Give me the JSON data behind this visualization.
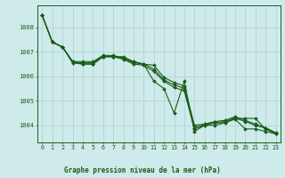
{
  "background_color": "#ceeaea",
  "grid_color": "#aed0d0",
  "line_color": "#1a5c1a",
  "marker_color": "#1a5c1a",
  "title": "Graphe pression niveau de la mer (hPa)",
  "title_color": "#1a5c1a",
  "ylim": [
    1003.3,
    1008.9
  ],
  "yticks": [
    1004,
    1005,
    1006,
    1007,
    1008
  ],
  "xticks": [
    0,
    1,
    2,
    3,
    4,
    5,
    6,
    7,
    8,
    9,
    10,
    11,
    12,
    13,
    14,
    15,
    16,
    17,
    18,
    19,
    20,
    21,
    22,
    23
  ],
  "s1": [
    1008.5,
    1007.4,
    1007.2,
    1006.6,
    1006.5,
    1006.5,
    1006.8,
    1006.8,
    1006.8,
    1006.6,
    1006.5,
    1005.8,
    1005.5,
    1004.5,
    1005.8,
    1003.75,
    1004.0,
    1004.0,
    1004.1,
    1004.25,
    1003.85,
    1003.85,
    1003.75,
    1003.65
  ],
  "s2": [
    1008.5,
    1007.4,
    1007.2,
    1006.6,
    1006.6,
    1006.6,
    1006.85,
    1006.85,
    1006.75,
    1006.6,
    1006.5,
    1006.45,
    1005.95,
    1005.75,
    1005.6,
    1004.0,
    1004.05,
    1004.15,
    1004.2,
    1004.35,
    1004.2,
    1004.05,
    1003.9,
    1003.7
  ],
  "s3": [
    1008.5,
    1007.4,
    1007.2,
    1006.6,
    1006.55,
    1006.55,
    1006.82,
    1006.82,
    1006.72,
    1006.55,
    1006.5,
    1006.3,
    1005.85,
    1005.65,
    1005.5,
    1003.9,
    1004.03,
    1004.12,
    1004.15,
    1004.3,
    1004.15,
    1004.0,
    1003.88,
    1003.68
  ],
  "s4": [
    1008.5,
    1007.4,
    1007.2,
    1006.55,
    1006.5,
    1006.5,
    1006.8,
    1006.8,
    1006.7,
    1006.5,
    1006.45,
    1006.2,
    1005.8,
    1005.55,
    1005.4,
    1003.85,
    1004.0,
    1004.1,
    1004.1,
    1004.28,
    1004.28,
    1004.28,
    1003.85,
    1003.65
  ]
}
